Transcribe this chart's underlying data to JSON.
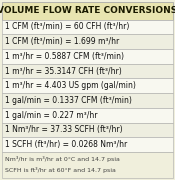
{
  "title": "VOLUME FLOW RATE CONVERSIONS",
  "rows": [
    "1 CFM (ft³/min) = 60 CFH (ft³/hr)",
    "1 CFM (ft³/min) = 1.699 m³/hr",
    "1 m³/hr = 0.5887 CFM (ft³/min)",
    "1 m³/hr = 35.3147 CFH (ft³/hr)",
    "1 m³/hr = 4.403 US gpm (gal/min)",
    "1 gal/min = 0.1337 CFM (ft³/min)",
    "1 gal/min = 0.227 m³/hr",
    "1 Nm³/hr = 37.33 SCFH (ft³/hr)",
    "1 SCFH (ft³/hr) = 0.0268 Nm³/hr"
  ],
  "footnote1": "Nm³/hr is m³/hr at 0°C and 14.7 psia",
  "footnote2": "SCFH is ft³/hr at 60°F and 14.7 psia",
  "bg_color": "#f0efdc",
  "header_bg": "#e8e4b0",
  "header_text_color": "#1a1a00",
  "row_color_even": "#f8f8f0",
  "row_color_odd": "#eeeee0",
  "footnote_bg": "#f0efdc",
  "border_color": "#aaaaaa",
  "text_color": "#111111",
  "title_fontsize": 6.5,
  "row_fontsize": 5.5,
  "footnote_fontsize": 4.5
}
